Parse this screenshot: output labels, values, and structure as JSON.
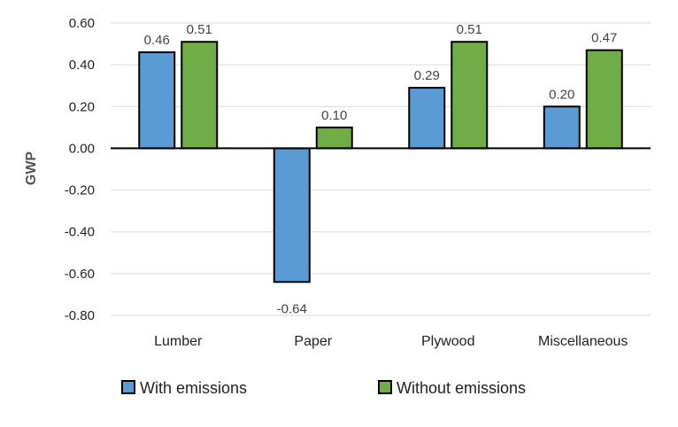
{
  "chart_data": {
    "type": "bar",
    "categories": [
      "Lumber",
      "Paper",
      "Plywood",
      "Miscellaneous"
    ],
    "series": [
      {
        "name": "With emissions",
        "values": [
          0.46,
          -0.64,
          0.29,
          0.2
        ],
        "color": "#5b9bd5"
      },
      {
        "name": "Without emissions",
        "values": [
          0.51,
          0.1,
          0.51,
          0.47
        ],
        "color": "#70ad47"
      }
    ],
    "data_labels": [
      [
        "0.46",
        "-0.64",
        "0.29",
        "0.20"
      ],
      [
        "0.51",
        "0.10",
        "0.51",
        "0.47"
      ]
    ],
    "title": "",
    "xlabel": "",
    "ylabel": "GWP",
    "ylim": [
      -0.8,
      0.6
    ],
    "yticks": [
      0.6,
      0.4,
      0.2,
      0.0,
      -0.2,
      -0.4,
      -0.6,
      -0.8
    ],
    "ytick_labels": [
      "0.60",
      "0.40",
      "0.20",
      "0.00",
      "-0.20",
      "-0.40",
      "-0.60",
      "-0.80"
    ],
    "grid": true,
    "legend_position": "bottom"
  }
}
